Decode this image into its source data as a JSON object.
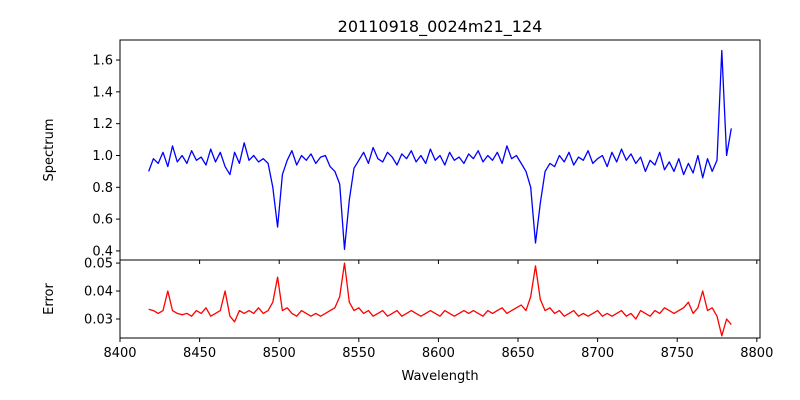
{
  "chart_data": [
    {
      "type": "line",
      "title": "20110918_0024m21_124",
      "xlabel": "",
      "ylabel": "Spectrum",
      "xlim": [
        8400,
        8802
      ],
      "ylim": [
        0.343,
        1.726
      ],
      "xticks": [
        8400,
        8450,
        8500,
        8550,
        8600,
        8650,
        8700,
        8750,
        8800
      ],
      "yticks": [
        0.4,
        0.6,
        0.8,
        1.0,
        1.2,
        1.4,
        1.6
      ],
      "ytick_labels": [
        "0.4",
        "0.6",
        "0.8",
        "1.0",
        "1.2",
        "1.4",
        "1.6"
      ],
      "color": "#0000ff",
      "x_start": 8418,
      "x_step": 3,
      "values": [
        0.9,
        0.98,
        0.95,
        1.02,
        0.93,
        1.06,
        0.96,
        1.0,
        0.95,
        1.03,
        0.97,
        0.99,
        0.94,
        1.04,
        0.96,
        1.02,
        0.93,
        0.88,
        1.02,
        0.95,
        1.08,
        0.97,
        1.0,
        0.96,
        0.98,
        0.95,
        0.8,
        0.55,
        0.88,
        0.97,
        1.03,
        0.94,
        1.0,
        0.97,
        1.01,
        0.95,
        0.99,
        1.0,
        0.93,
        0.9,
        0.82,
        0.41,
        0.72,
        0.92,
        0.97,
        1.02,
        0.95,
        1.05,
        0.98,
        0.96,
        1.02,
        0.99,
        0.94,
        1.01,
        0.98,
        1.03,
        0.96,
        1.0,
        0.95,
        1.04,
        0.97,
        1.0,
        0.94,
        1.02,
        0.97,
        0.99,
        0.95,
        1.01,
        0.98,
        1.03,
        0.96,
        1.0,
        0.97,
        1.02,
        0.95,
        1.06,
        0.98,
        1.0,
        0.95,
        0.9,
        0.8,
        0.45,
        0.7,
        0.9,
        0.95,
        0.93,
        1.0,
        0.96,
        1.02,
        0.94,
        0.99,
        0.97,
        1.03,
        0.95,
        0.98,
        1.0,
        0.93,
        1.02,
        0.96,
        1.04,
        0.97,
        1.01,
        0.95,
        0.99,
        0.9,
        0.97,
        0.94,
        1.02,
        0.91,
        0.96,
        0.9,
        0.98,
        0.88,
        0.95,
        0.89,
        1.0,
        0.86,
        0.98,
        0.9,
        0.97,
        1.66,
        1.0,
        1.17
      ]
    },
    {
      "type": "line",
      "title": "",
      "xlabel": "Wavelength",
      "ylabel": "Error",
      "xlim": [
        8400,
        8802
      ],
      "ylim": [
        0.0232,
        0.0511
      ],
      "xticks": [
        8400,
        8450,
        8500,
        8550,
        8600,
        8650,
        8700,
        8750,
        8800
      ],
      "xtick_labels": [
        "8400",
        "8450",
        "8500",
        "8550",
        "8600",
        "8650",
        "8700",
        "8750",
        "8800"
      ],
      "yticks": [
        0.03,
        0.04,
        0.05
      ],
      "ytick_labels": [
        "0.03",
        "0.04",
        "0.05"
      ],
      "color": "#ff0000",
      "x_start": 8418,
      "x_step": 3,
      "values": [
        0.0335,
        0.033,
        0.032,
        0.033,
        0.04,
        0.033,
        0.032,
        0.0315,
        0.032,
        0.031,
        0.033,
        0.032,
        0.034,
        0.031,
        0.032,
        0.033,
        0.04,
        0.031,
        0.029,
        0.033,
        0.032,
        0.033,
        0.032,
        0.034,
        0.032,
        0.033,
        0.036,
        0.045,
        0.033,
        0.034,
        0.032,
        0.031,
        0.033,
        0.032,
        0.031,
        0.032,
        0.031,
        0.032,
        0.033,
        0.034,
        0.038,
        0.05,
        0.036,
        0.033,
        0.034,
        0.032,
        0.033,
        0.031,
        0.032,
        0.033,
        0.031,
        0.032,
        0.033,
        0.031,
        0.032,
        0.033,
        0.032,
        0.031,
        0.032,
        0.033,
        0.032,
        0.031,
        0.033,
        0.032,
        0.031,
        0.032,
        0.033,
        0.032,
        0.033,
        0.032,
        0.031,
        0.033,
        0.032,
        0.033,
        0.034,
        0.032,
        0.033,
        0.034,
        0.035,
        0.033,
        0.038,
        0.049,
        0.037,
        0.033,
        0.034,
        0.032,
        0.033,
        0.031,
        0.032,
        0.033,
        0.031,
        0.032,
        0.031,
        0.032,
        0.033,
        0.031,
        0.032,
        0.031,
        0.032,
        0.033,
        0.031,
        0.032,
        0.03,
        0.033,
        0.032,
        0.031,
        0.033,
        0.032,
        0.034,
        0.033,
        0.032,
        0.033,
        0.034,
        0.036,
        0.032,
        0.034,
        0.04,
        0.033,
        0.034,
        0.031,
        0.024,
        0.03,
        0.028
      ]
    }
  ]
}
